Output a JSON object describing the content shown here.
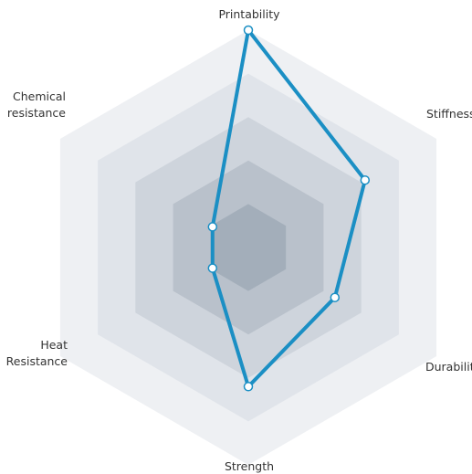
{
  "chart_data": {
    "type": "radar",
    "axes": [
      "Printability",
      "Stiffness",
      "Durability",
      "Strength",
      "Heat Resistance",
      "Chemical resistance"
    ],
    "label_lines": [
      [
        "Printability"
      ],
      [
        "Stiffness"
      ],
      [
        "Durability"
      ],
      [
        "Strength"
      ],
      [
        "Heat",
        "Resistance"
      ],
      [
        "Chemical",
        "resistance"
      ]
    ],
    "range": [
      0,
      5
    ],
    "levels": 5,
    "series": [
      {
        "values": [
          5,
          3.1,
          2.3,
          3.2,
          0.95,
          0.95
        ]
      }
    ],
    "colors": {
      "line": "#1b8fc4",
      "marker_fill": "#ffffff",
      "rings": [
        "#eef0f3",
        "#e0e4ea",
        "#ced4dc",
        "#b9c1cb",
        "#a3aeba"
      ],
      "label": "#333333"
    }
  }
}
